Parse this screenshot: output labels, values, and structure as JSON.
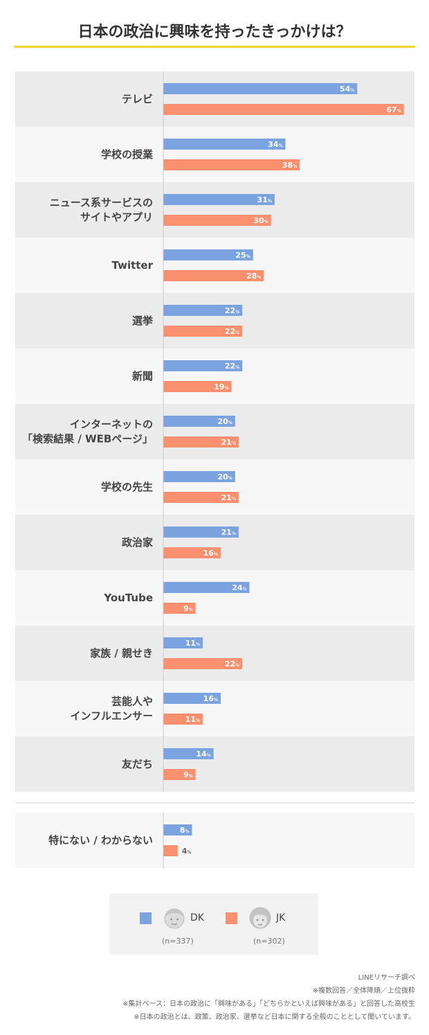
{
  "title": "日本の政治に興味を持ったきっかけは？",
  "colors": {
    "dk": "#7aa3e0",
    "jk": "#fa906e",
    "row_dark": "#ececec",
    "row_light": "#f7f7f7",
    "accent": "#f2d833"
  },
  "chart_data": {
    "type": "bar",
    "orientation": "horizontal",
    "value_suffix": "%",
    "categories": [
      [
        "テレビ"
      ],
      [
        "学校の授業"
      ],
      [
        "ニュース系サービスの",
        "サイトやアプリ"
      ],
      [
        "Twitter"
      ],
      [
        "選挙"
      ],
      [
        "新聞"
      ],
      [
        "インターネットの",
        "「検索結果 / WEBページ」"
      ],
      [
        "学校の先生"
      ],
      [
        "政治家"
      ],
      [
        "YouTube"
      ],
      [
        "家族 / 親せき"
      ],
      [
        "芸能人や",
        "インフルエンサー"
      ],
      [
        "友だち"
      ]
    ],
    "series": [
      {
        "name": "DK",
        "values": [
          54,
          34,
          31,
          25,
          22,
          22,
          20,
          20,
          21,
          24,
          11,
          16,
          14
        ]
      },
      {
        "name": "JK",
        "values": [
          67,
          38,
          30,
          28,
          22,
          19,
          21,
          21,
          16,
          9,
          22,
          11,
          9
        ]
      }
    ],
    "separate_group": {
      "categories": [
        [
          "特にない / わからない"
        ]
      ],
      "series": [
        {
          "name": "DK",
          "values": [
            8
          ]
        },
        {
          "name": "JK",
          "values": [
            4
          ]
        }
      ]
    }
  },
  "legend": {
    "dk": {
      "label": "DK",
      "n": "(n=337)"
    },
    "jk": {
      "label": "JK",
      "n": "(n=302)"
    }
  },
  "notes": [
    "LINEリサーチ調べ",
    "※複数回答／全体降順／上位抜粋",
    "※集計ベース：日本の政治に「興味がある」「どちらかといえば興味がある」と回答した高校生",
    "※日本の政治とは、政策、政治家、選挙など日本に関する全般のこととして聞いています。"
  ]
}
